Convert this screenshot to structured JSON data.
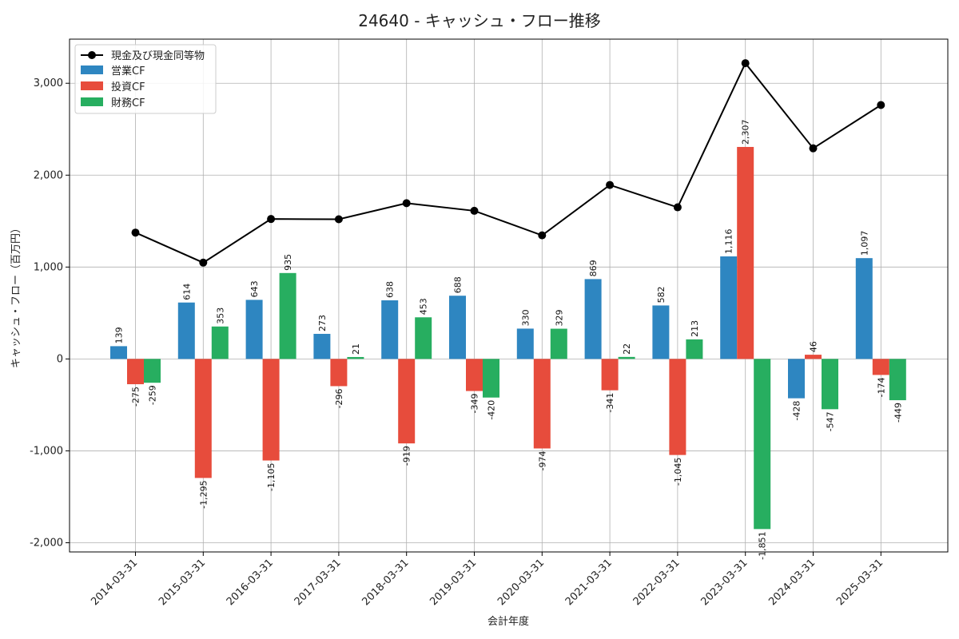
{
  "chart_data": {
    "type": "bar",
    "title": "24640 - キャッシュ・フロー推移",
    "xlabel": "会計年度",
    "ylabel": "キャッシュ・フロー（百万円）",
    "ylim": [
      -2100,
      3480
    ],
    "yticks": [
      -2000,
      -1000,
      0,
      1000,
      2000,
      3000
    ],
    "ytick_labels": [
      "-2,000",
      "-1,000",
      "0",
      "1,000",
      "2,000",
      "3,000"
    ],
    "grid": true,
    "legend_position": "top-left",
    "categories": [
      "2014-03-31",
      "2015-03-31",
      "2016-03-31",
      "2017-03-31",
      "2018-03-31",
      "2019-03-31",
      "2020-03-31",
      "2021-03-31",
      "2022-03-31",
      "2023-03-31",
      "2024-03-31",
      "2025-03-31"
    ],
    "line": {
      "name": "現金及び現金同等物",
      "color": "#000000",
      "values": [
        1375,
        1048,
        1523,
        1520,
        1695,
        1612,
        1345,
        1893,
        1650,
        3218,
        2292,
        2763
      ]
    },
    "series": [
      {
        "name": "営業CF",
        "color": "#2e86c1",
        "values": [
          139,
          614,
          643,
          273,
          638,
          688,
          330,
          869,
          582,
          1116,
          -428,
          1097
        ],
        "labels": [
          "139",
          "614",
          "643",
          "273",
          "638",
          "688",
          "330",
          "869",
          "582",
          "1,116",
          "-428",
          "1,097"
        ]
      },
      {
        "name": "投資CF",
        "color": "#e74c3c",
        "values": [
          -275,
          -1295,
          -1105,
          -296,
          -919,
          -349,
          -974,
          -341,
          -1045,
          2307,
          46,
          -174
        ],
        "labels": [
          "-275",
          "-1,295",
          "-1,105",
          "-296",
          "-919",
          "-349",
          "-974",
          "-341",
          "-1,045",
          "2,307",
          "46",
          "-174"
        ]
      },
      {
        "name": "財務CF",
        "color": "#27ae60",
        "values": [
          -259,
          353,
          935,
          21,
          453,
          -420,
          329,
          22,
          213,
          -1851,
          -547,
          -449
        ],
        "labels": [
          "-259",
          "353",
          "935",
          "21",
          "453",
          "-420",
          "329",
          "22",
          "213",
          "-1,851",
          "-547",
          "-449"
        ]
      }
    ]
  }
}
